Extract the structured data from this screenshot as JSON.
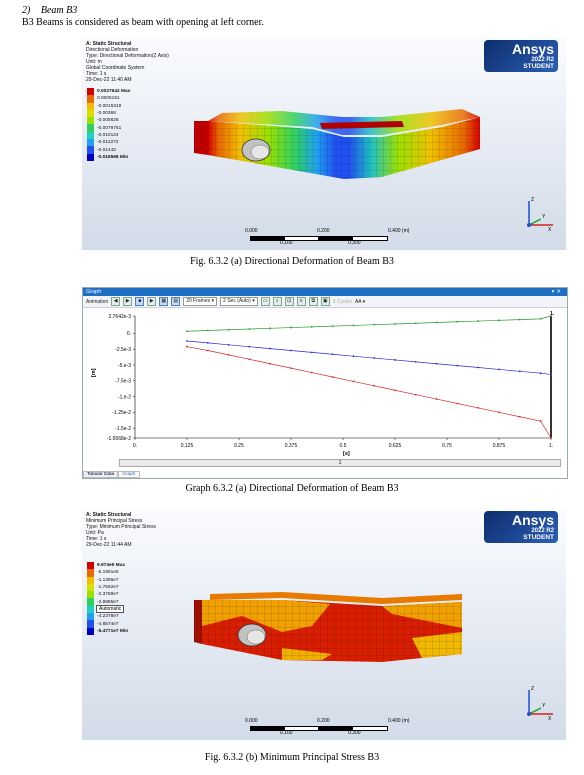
{
  "section": {
    "number": "2)",
    "title": "Beam B3"
  },
  "intro": "B3 Beams is considered as beam with opening at left corner.",
  "brand": {
    "name": "Ansys",
    "version": "2022 R2",
    "edition": "STUDENT"
  },
  "fig1": {
    "caption": "Fig. 6.3.2 (a) Directional Deformation of Beam B3",
    "header": [
      "A: Static Structural",
      "Directional Deformation",
      "Type: Directional Deformation(Z Axis)",
      "Unit: m",
      "Global Coordinate System",
      "Time: 1 s",
      "29-Dec-22 11:40 AM"
    ],
    "legend": [
      {
        "label": "0.0027642 Max",
        "color": "#d40000",
        "bold": true
      },
      {
        "label": "0.0006161",
        "color": "#e86a00"
      },
      {
        "label": "-0.0015319",
        "color": "#f0c000"
      },
      {
        "label": "-0.00368",
        "color": "#d8e000"
      },
      {
        "label": "-0.005828",
        "color": "#9be000"
      },
      {
        "label": "-0.0079761",
        "color": "#2fd060"
      },
      {
        "label": "-0.010124",
        "color": "#20d0c0"
      },
      {
        "label": "-0.012272",
        "color": "#20a0f0"
      },
      {
        "label": "-0.01442",
        "color": "#2050f0"
      },
      {
        "label": "-0.016568 Min",
        "color": "#0000c0",
        "bold": true
      }
    ],
    "scale": {
      "t0": "0.000",
      "t1": "0.100",
      "t2": "0.200",
      "t3": "0.300",
      "t4": "0.400 (m)"
    }
  },
  "graph": {
    "caption": "Graph 6.3.2 (a) Directional Deformation of Beam B3",
    "window_title": "Graph",
    "toolbar": {
      "animation": "Animation",
      "frames": "20 Frames",
      "speed": "2 Sec (Auto)",
      "cycles": "3 Cycles",
      "aa": "AA"
    },
    "tabs": [
      "Tabular Data",
      "Graph"
    ],
    "strip_label": "1",
    "marker_label": "1.",
    "chart_data": {
      "type": "line",
      "xlabel": "[s]",
      "ylabel": "[m]",
      "xlim": [
        0.125,
        1.0
      ],
      "ylim": [
        -0.016568,
        0.0027642
      ],
      "x_ticks": [
        "0.",
        "0.125",
        "0.25",
        "0.375",
        "0.5",
        "0.625",
        "0.75",
        "0.875",
        "1."
      ],
      "y_ticks": [
        "2.7642e-3",
        "0.",
        "-2.5e-3",
        "-5.e-3",
        "-7.5e-3",
        "-1.e-2",
        "-1.25e-2",
        "-1.5e-2",
        "-1.6568e-2"
      ],
      "x": [
        0.125,
        0.175,
        0.225,
        0.275,
        0.325,
        0.375,
        0.425,
        0.475,
        0.525,
        0.575,
        0.625,
        0.675,
        0.725,
        0.775,
        0.825,
        0.875,
        0.925,
        0.975,
        1.0
      ],
      "series": [
        {
          "color": "#2a9a2a",
          "values": [
            0.00035,
            0.00047,
            0.00058,
            0.0007,
            0.00081,
            0.00093,
            0.00104,
            0.00116,
            0.00127,
            0.00139,
            0.0015,
            0.00162,
            0.00173,
            0.00185,
            0.00196,
            0.00208,
            0.00219,
            0.00231,
            0.0027642
          ]
        },
        {
          "color": "#2a2ad4",
          "values": [
            -0.0012,
            -0.0015,
            -0.0018,
            -0.0021,
            -0.0024,
            -0.0027,
            -0.003,
            -0.0033,
            -0.0036,
            -0.0039,
            -0.0042,
            -0.0045,
            -0.0048,
            -0.0051,
            -0.0054,
            -0.0057,
            -0.006,
            -0.0063,
            -0.0065
          ]
        },
        {
          "color": "#d42a2a",
          "values": [
            -0.0021,
            -0.0027,
            -0.0034,
            -0.0041,
            -0.0048,
            -0.0055,
            -0.0062,
            -0.0069,
            -0.0076,
            -0.0083,
            -0.009,
            -0.0097,
            -0.0104,
            -0.0111,
            -0.0118,
            -0.0125,
            -0.0132,
            -0.0139,
            -0.016568
          ]
        }
      ]
    }
  },
  "fig2": {
    "caption": "Fig. 6.3.2 (b) Minimum Principal Stress B3",
    "header": [
      "A: Static Structural",
      "Minimum Principal Stress",
      "Type: Minimum Principal Stress",
      "Unit: Pa",
      "Time: 1 s",
      "29-Dec-22 11:44 AM"
    ],
    "legend": [
      {
        "label": "9.974e5 Max",
        "color": "#d40000",
        "bold": true
      },
      {
        "label": "-5.1991e6",
        "color": "#e86a00"
      },
      {
        "label": "-1.1396e7",
        "color": "#f0c000"
      },
      {
        "label": "-1.7592e7",
        "color": "#d8e000"
      },
      {
        "label": "-2.3788e7",
        "color": "#9be000"
      },
      {
        "label": "-2.9985e7",
        "color": "#2fd060"
      },
      {
        "label": "",
        "color": "#20d0c0"
      },
      {
        "label": "-4.2378e7",
        "color": "#20a0f0"
      },
      {
        "label": "-4.8574e7",
        "color": "#2050f0"
      },
      {
        "label": "-5.4771e7 Min",
        "color": "#0000c0",
        "bold": true
      }
    ],
    "auto_box": "Automatic",
    "scale": {
      "t0": "0.000",
      "t1": "0.100",
      "t2": "0.200",
      "t3": "0.300",
      "t4": "0.400 (m)"
    }
  }
}
